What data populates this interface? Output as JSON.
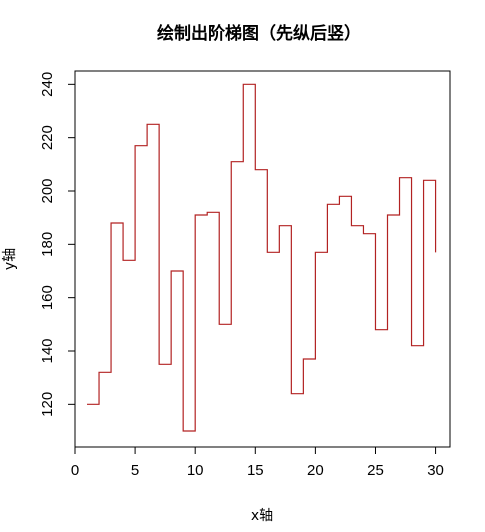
{
  "chart_data": {
    "type": "line",
    "style": "step",
    "title": "绘制出阶梯图（先纵后竖）",
    "xlabel": "x轴",
    "ylabel": "y轴",
    "xlim": [
      0,
      31.2
    ],
    "ylim": [
      104,
      245
    ],
    "xticks": [
      0,
      5,
      10,
      15,
      20,
      25,
      30
    ],
    "yticks": [
      120,
      140,
      160,
      180,
      200,
      220,
      240
    ],
    "grid": false,
    "legend": "none",
    "color": "#b22222",
    "series": [
      {
        "x": [
          1,
          2,
          3,
          4,
          5,
          6,
          7,
          8,
          9,
          10,
          11,
          12,
          13,
          14,
          15,
          16,
          17,
          18,
          19,
          20,
          21,
          22,
          23,
          24,
          25,
          26,
          27,
          28,
          29,
          30
        ],
        "y": [
          120,
          132,
          188,
          174,
          217,
          225,
          135,
          170,
          110,
          191,
          192,
          150,
          211,
          240,
          208,
          177,
          187,
          124,
          137,
          177,
          195,
          198,
          187,
          184,
          148,
          191,
          205,
          142,
          204,
          177
        ]
      }
    ]
  }
}
